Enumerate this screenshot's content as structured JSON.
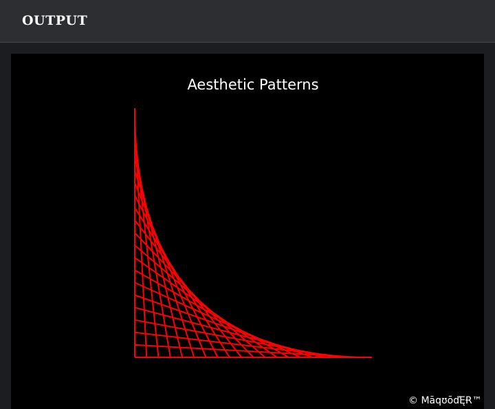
{
  "header": {
    "title": "OUTPUT"
  },
  "output": {
    "watermark": "© MāqʊōďĘɌ™"
  },
  "chart_data": {
    "type": "line",
    "title": "Aesthetic Patterns",
    "xlabel": "",
    "ylabel": "",
    "axes_visible": false,
    "grid": false,
    "background": "#000000",
    "line_color": "#ff0000",
    "description_of_series": "string-art envelope: segments from (i, 0) to (0, n - i)",
    "n": 20,
    "xlim": [
      0,
      20
    ],
    "ylim": [
      0,
      20
    ],
    "series": [
      {
        "x": [
          0,
          0
        ],
        "y": [
          0,
          20
        ]
      },
      {
        "x": [
          1,
          0
        ],
        "y": [
          0,
          19
        ]
      },
      {
        "x": [
          2,
          0
        ],
        "y": [
          0,
          18
        ]
      },
      {
        "x": [
          3,
          0
        ],
        "y": [
          0,
          17
        ]
      },
      {
        "x": [
          4,
          0
        ],
        "y": [
          0,
          16
        ]
      },
      {
        "x": [
          5,
          0
        ],
        "y": [
          0,
          15
        ]
      },
      {
        "x": [
          6,
          0
        ],
        "y": [
          0,
          14
        ]
      },
      {
        "x": [
          7,
          0
        ],
        "y": [
          0,
          13
        ]
      },
      {
        "x": [
          8,
          0
        ],
        "y": [
          0,
          12
        ]
      },
      {
        "x": [
          9,
          0
        ],
        "y": [
          0,
          11
        ]
      },
      {
        "x": [
          10,
          0
        ],
        "y": [
          0,
          10
        ]
      },
      {
        "x": [
          11,
          0
        ],
        "y": [
          0,
          9
        ]
      },
      {
        "x": [
          12,
          0
        ],
        "y": [
          0,
          8
        ]
      },
      {
        "x": [
          13,
          0
        ],
        "y": [
          0,
          7
        ]
      },
      {
        "x": [
          14,
          0
        ],
        "y": [
          0,
          6
        ]
      },
      {
        "x": [
          15,
          0
        ],
        "y": [
          0,
          5
        ]
      },
      {
        "x": [
          16,
          0
        ],
        "y": [
          0,
          4
        ]
      },
      {
        "x": [
          17,
          0
        ],
        "y": [
          0,
          3
        ]
      },
      {
        "x": [
          18,
          0
        ],
        "y": [
          0,
          2
        ]
      },
      {
        "x": [
          19,
          0
        ],
        "y": [
          0,
          1
        ]
      },
      {
        "x": [
          20,
          0
        ],
        "y": [
          0,
          0
        ]
      }
    ]
  }
}
